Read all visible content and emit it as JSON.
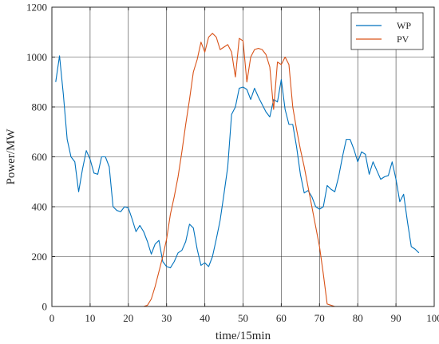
{
  "chart_data": {
    "type": "line",
    "xlabel": "time/15min",
    "ylabel": "Power/MW",
    "xlim": [
      0,
      100
    ],
    "ylim": [
      0,
      1200
    ],
    "xticks": [
      0,
      10,
      20,
      30,
      40,
      50,
      60,
      70,
      80,
      90,
      100
    ],
    "yticks": [
      0,
      200,
      400,
      600,
      800,
      1000,
      1200
    ],
    "grid": true,
    "legend_position": "top-right",
    "series": [
      {
        "name": "WP",
        "color": "#0072BD",
        "x": [
          1,
          2,
          3,
          4,
          5,
          6,
          7,
          8,
          9,
          10,
          11,
          12,
          13,
          14,
          15,
          16,
          17,
          18,
          19,
          20,
          21,
          22,
          23,
          24,
          25,
          26,
          27,
          28,
          29,
          30,
          31,
          32,
          33,
          34,
          35,
          36,
          37,
          38,
          39,
          40,
          41,
          42,
          43,
          44,
          45,
          46,
          47,
          48,
          49,
          50,
          51,
          52,
          53,
          54,
          55,
          56,
          57,
          58,
          59,
          60,
          61,
          62,
          63,
          64,
          65,
          66,
          67,
          68,
          69,
          70,
          71,
          72,
          73,
          74,
          75,
          76,
          77,
          78,
          79,
          80,
          81,
          82,
          83,
          84,
          85,
          86,
          87,
          88,
          89,
          90,
          91,
          92,
          93,
          94,
          95,
          96
        ],
        "y": [
          900,
          1005,
          850,
          670,
          600,
          580,
          460,
          550,
          625,
          590,
          535,
          530,
          600,
          600,
          560,
          400,
          385,
          380,
          400,
          395,
          350,
          300,
          325,
          300,
          260,
          210,
          250,
          265,
          180,
          160,
          155,
          180,
          215,
          225,
          260,
          330,
          315,
          230,
          165,
          175,
          160,
          200,
          270,
          345,
          450,
          560,
          770,
          800,
          875,
          880,
          870,
          830,
          875,
          840,
          810,
          780,
          760,
          830,
          820,
          910,
          790,
          730,
          730,
          640,
          530,
          455,
          465,
          440,
          400,
          390,
          400,
          485,
          470,
          460,
          520,
          600,
          670,
          670,
          630,
          580,
          620,
          610,
          530,
          580,
          545,
          510,
          520,
          525,
          580,
          510,
          420,
          450,
          340,
          240,
          230,
          215
        ]
      },
      {
        "name": "PV",
        "color": "#D95319",
        "x": [
          1,
          2,
          3,
          4,
          5,
          6,
          7,
          8,
          9,
          10,
          11,
          12,
          13,
          14,
          15,
          16,
          17,
          18,
          19,
          20,
          21,
          22,
          23,
          24,
          25,
          26,
          27,
          28,
          29,
          30,
          31,
          32,
          33,
          34,
          35,
          36,
          37,
          38,
          39,
          40,
          41,
          42,
          43,
          44,
          45,
          46,
          47,
          48,
          49,
          50,
          51,
          52,
          53,
          54,
          55,
          56,
          57,
          58,
          59,
          60,
          61,
          62,
          63,
          64,
          65,
          66,
          67,
          68,
          69,
          70,
          71,
          72,
          73,
          74,
          75,
          76,
          77,
          78,
          79,
          80,
          81,
          82,
          83,
          84,
          85,
          86,
          87,
          88,
          89,
          90,
          91,
          92,
          93,
          94,
          95,
          96
        ],
        "y": [
          0,
          0,
          0,
          0,
          0,
          0,
          0,
          0,
          0,
          0,
          0,
          0,
          0,
          0,
          0,
          0,
          0,
          0,
          0,
          0,
          0,
          0,
          0,
          0,
          5,
          30,
          80,
          140,
          200,
          270,
          370,
          440,
          520,
          620,
          730,
          830,
          940,
          990,
          1060,
          1020,
          1080,
          1095,
          1080,
          1030,
          1040,
          1050,
          1020,
          920,
          1075,
          1065,
          900,
          1000,
          1030,
          1035,
          1030,
          1010,
          960,
          790,
          980,
          970,
          1000,
          970,
          800,
          710,
          630,
          560,
          480,
          400,
          320,
          240,
          130,
          10,
          5,
          0,
          0,
          0,
          0,
          0,
          0,
          0,
          0,
          0,
          0,
          0,
          0,
          0,
          0,
          0,
          0,
          0,
          0,
          0,
          0,
          0,
          0,
          0
        ]
      }
    ]
  }
}
